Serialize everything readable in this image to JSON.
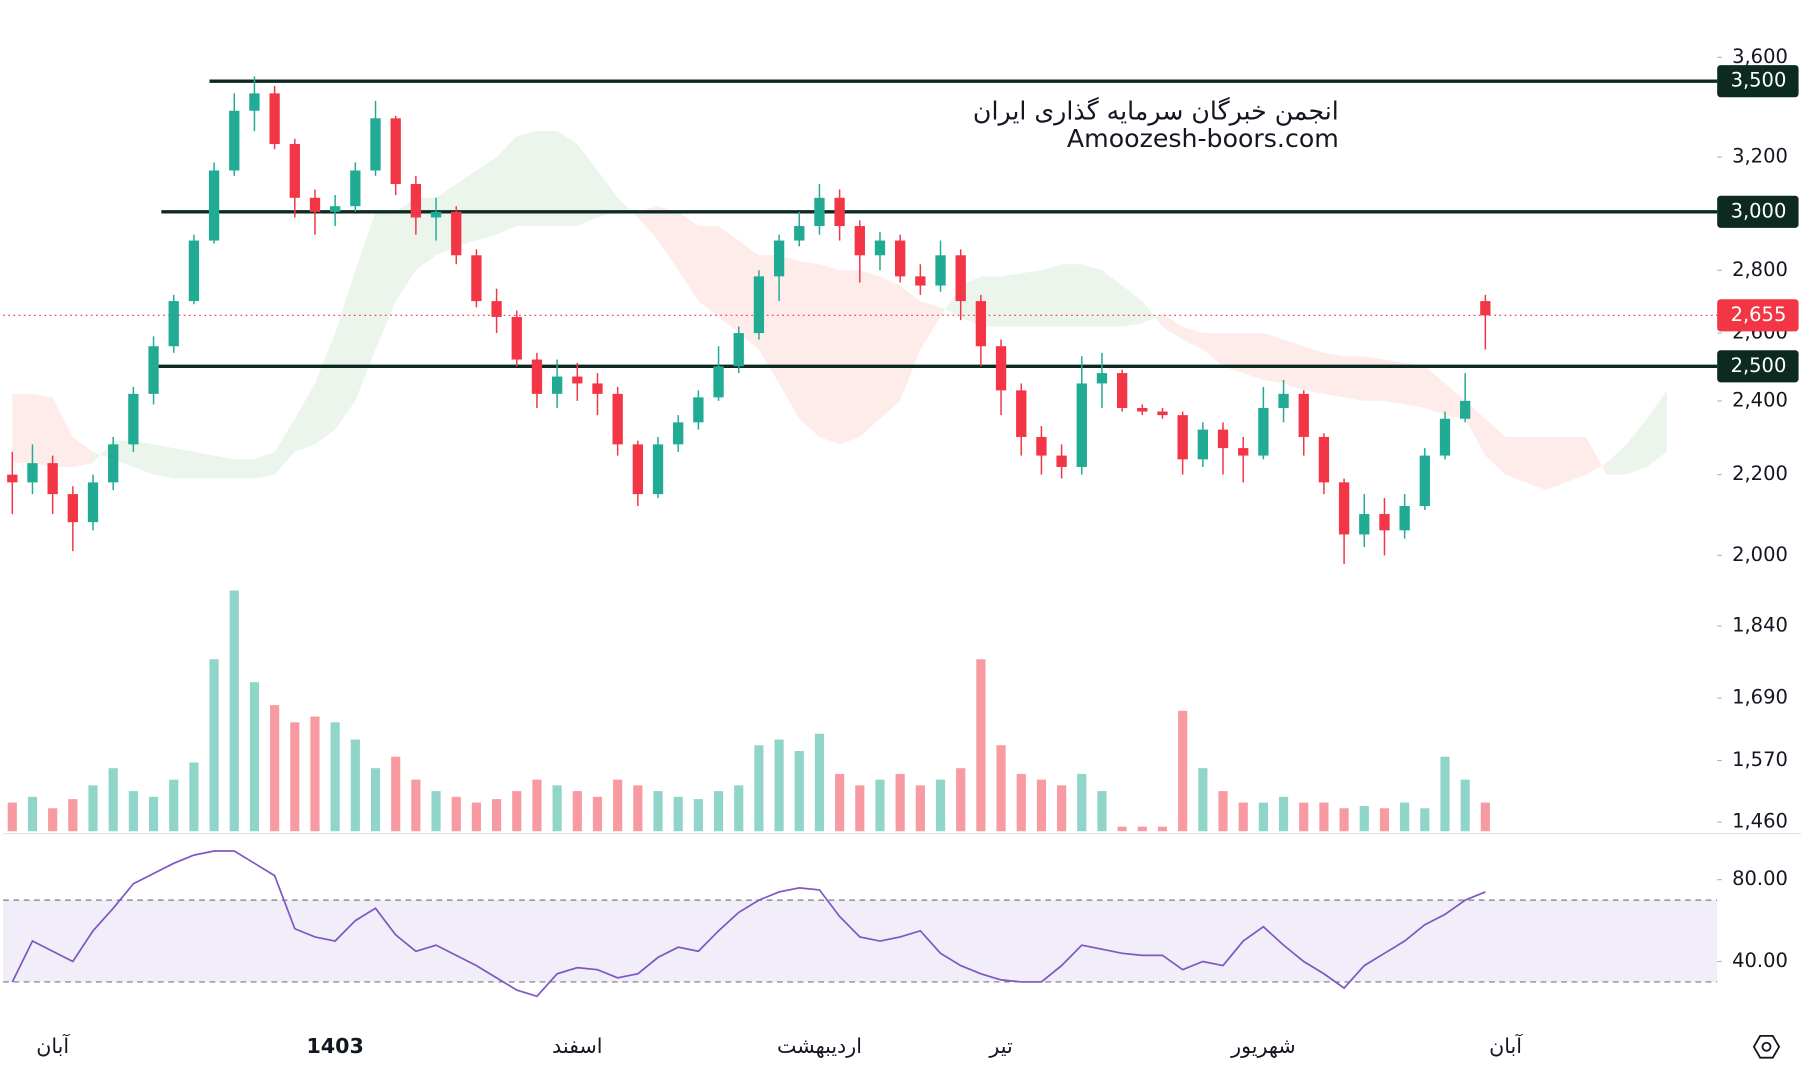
{
  "chart_data": {
    "type": "candlestick",
    "watermark": [
      "انجمن خبرگان سرمایه گذاری ایران",
      "Amoozesh-boors.com"
    ],
    "categories": [
      null,
      null,
      "آبان",
      null,
      null,
      null,
      null,
      null,
      null,
      null,
      null,
      null,
      null,
      null,
      null,
      null,
      "1403",
      null,
      null,
      null,
      null,
      null,
      null,
      null,
      null,
      null,
      null,
      null,
      "اسفند",
      null,
      null,
      null,
      null,
      null,
      null,
      null,
      null,
      null,
      null,
      null,
      "اردیبهشت",
      null,
      null,
      null,
      null,
      null,
      null,
      null,
      null,
      "تیر",
      null,
      null,
      null,
      null,
      null,
      null,
      null,
      null,
      null,
      null,
      null,
      null,
      "شهریور",
      null,
      null,
      null,
      null,
      null,
      null,
      null,
      null,
      null,
      null,
      null,
      "آبان",
      null,
      null,
      null,
      null,
      null,
      null,
      null,
      null
    ],
    "open": [
      2200,
      2180,
      2230,
      2150,
      2080,
      2180,
      2280,
      2420,
      2560,
      2700,
      2900,
      3150,
      3380,
      3450,
      3250,
      3050,
      3000,
      3020,
      3150,
      3350,
      3100,
      2980,
      3000,
      2850,
      2700,
      2650,
      2520,
      2420,
      2470,
      2450,
      2420,
      2280,
      2150,
      2280,
      2340,
      2410,
      2500,
      2600,
      2780,
      2900,
      2950,
      3050,
      2950,
      2850,
      2900,
      2780,
      2750,
      2850,
      2700,
      2560,
      2430,
      2300,
      2250,
      2220,
      2450,
      2480,
      2380,
      2370,
      2360,
      2240,
      2320,
      2270,
      2250,
      2380,
      2420,
      2300,
      2180,
      2050,
      2100,
      2060,
      2120,
      2250,
      2350,
      2700,
      null,
      null,
      null,
      null,
      null,
      null,
      null,
      null,
      null
    ],
    "high": [
      2260,
      2280,
      2250,
      2170,
      2200,
      2300,
      2440,
      2590,
      2720,
      2920,
      3180,
      3450,
      3520,
      3480,
      3270,
      3080,
      3060,
      3180,
      3420,
      3360,
      3130,
      3050,
      3020,
      2870,
      2740,
      2670,
      2540,
      2520,
      2510,
      2480,
      2440,
      2290,
      2300,
      2360,
      2430,
      2560,
      2620,
      2800,
      2920,
      3000,
      3100,
      3080,
      2970,
      2930,
      2920,
      2820,
      2900,
      2870,
      2720,
      2580,
      2450,
      2330,
      2280,
      2530,
      2540,
      2490,
      2390,
      2380,
      2370,
      2340,
      2340,
      2300,
      2440,
      2460,
      2430,
      2310,
      2190,
      2150,
      2140,
      2150,
      2270,
      2370,
      2480,
      2720,
      null,
      null,
      null,
      null,
      null,
      null,
      null,
      null,
      null
    ],
    "low": [
      2100,
      2150,
      2100,
      2010,
      2060,
      2160,
      2260,
      2390,
      2540,
      2690,
      2890,
      3130,
      3300,
      3230,
      2980,
      2920,
      2950,
      3000,
      3130,
      3060,
      2920,
      2900,
      2820,
      2680,
      2600,
      2500,
      2380,
      2380,
      2400,
      2360,
      2250,
      2120,
      2140,
      2260,
      2320,
      2400,
      2480,
      2580,
      2700,
      2880,
      2920,
      2900,
      2760,
      2800,
      2760,
      2720,
      2730,
      2640,
      2500,
      2360,
      2250,
      2200,
      2190,
      2200,
      2380,
      2370,
      2360,
      2350,
      2200,
      2220,
      2200,
      2180,
      2240,
      2340,
      2250,
      2150,
      1980,
      2020,
      2000,
      2040,
      2110,
      2240,
      2340,
      2550,
      null,
      null,
      null,
      null,
      null,
      null,
      null,
      null,
      null
    ],
    "close": [
      2180,
      2230,
      2150,
      2080,
      2180,
      2280,
      2420,
      2560,
      2700,
      2900,
      3150,
      3380,
      3450,
      3250,
      3050,
      3000,
      3020,
      3150,
      3350,
      3100,
      2980,
      3000,
      2850,
      2700,
      2650,
      2520,
      2420,
      2470,
      2450,
      2420,
      2280,
      2150,
      2280,
      2340,
      2410,
      2500,
      2600,
      2780,
      2900,
      2950,
      3050,
      2950,
      2850,
      2900,
      2780,
      2750,
      2850,
      2700,
      2560,
      2430,
      2300,
      2250,
      2220,
      2450,
      2480,
      2380,
      2370,
      2360,
      2240,
      2320,
      2270,
      2250,
      2380,
      2420,
      2300,
      2180,
      2050,
      2100,
      2060,
      2120,
      2250,
      2350,
      2400,
      2655,
      null,
      null,
      null,
      null,
      null,
      null,
      null,
      null,
      null
    ],
    "volume": [
      25,
      30,
      20,
      28,
      40,
      55,
      35,
      30,
      45,
      60,
      150,
      210,
      130,
      110,
      95,
      100,
      95,
      80,
      55,
      65,
      45,
      35,
      30,
      25,
      28,
      35,
      45,
      40,
      35,
      30,
      45,
      40,
      35,
      30,
      28,
      35,
      40,
      75,
      80,
      70,
      85,
      50,
      40,
      45,
      50,
      40,
      45,
      55,
      150,
      75,
      50,
      45,
      40,
      50,
      35,
      4,
      4,
      4,
      105,
      55,
      35,
      25,
      25,
      30,
      25,
      25,
      20,
      22,
      20,
      25,
      20,
      65,
      45,
      25,
      null,
      null,
      null,
      null,
      null,
      null,
      null,
      null,
      null
    ],
    "cloud": {
      "span_a": [
        2230,
        2230,
        2220,
        2220,
        2230,
        2290,
        2290,
        2280,
        2270,
        2260,
        2250,
        2240,
        2240,
        2260,
        2350,
        2450,
        2600,
        2800,
        3000,
        3000,
        3050,
        3050,
        3100,
        3150,
        3200,
        3280,
        3300,
        3300,
        3250,
        3150,
        3050,
        2980,
        2900,
        2800,
        2700,
        2650,
        2600,
        2550,
        2450,
        2350,
        2300,
        2280,
        2300,
        2350,
        2400,
        2550,
        2650,
        2750,
        2780,
        2780,
        2790,
        2800,
        2820,
        2820,
        2800,
        2750,
        2700,
        2620,
        2580,
        2550,
        2500,
        2480,
        2460,
        2450,
        2430,
        2420,
        2410,
        2400,
        2400,
        2390,
        2380,
        2360,
        2350,
        2250,
        2200,
        2180,
        2160,
        2180,
        2200,
        2230,
        2280,
        2350,
        2430
      ],
      "span_b": [
        2420,
        2420,
        2410,
        2300,
        2260,
        2240,
        2220,
        2200,
        2190,
        2190,
        2190,
        2190,
        2190,
        2200,
        2260,
        2280,
        2320,
        2400,
        2550,
        2700,
        2800,
        2850,
        2880,
        2900,
        2920,
        2950,
        2950,
        2950,
        2950,
        2980,
        3000,
        3000,
        3020,
        3000,
        2950,
        2950,
        2900,
        2850,
        2850,
        2830,
        2820,
        2800,
        2800,
        2780,
        2750,
        2700,
        2680,
        2650,
        2620,
        2620,
        2620,
        2620,
        2620,
        2620,
        2620,
        2620,
        2630,
        2660,
        2620,
        2600,
        2600,
        2600,
        2600,
        2580,
        2560,
        2540,
        2530,
        2530,
        2520,
        2510,
        2500,
        2450,
        2400,
        2350,
        2300,
        2300,
        2300,
        2300,
        2300,
        2200,
        2200,
        2220,
        2260
      ]
    },
    "rsi": {
      "values": [
        30,
        50,
        45,
        40,
        55,
        66,
        78,
        83,
        88,
        92,
        94,
        94,
        88,
        82,
        56,
        52,
        50,
        60,
        66,
        53,
        45,
        48,
        43,
        38,
        32,
        26,
        23,
        34,
        37,
        36,
        32,
        34,
        42,
        47,
        45,
        55,
        64,
        70,
        74,
        76,
        75,
        62,
        52,
        50,
        52,
        55,
        44,
        38,
        34,
        31,
        30,
        30,
        38,
        48,
        46,
        44,
        43,
        43,
        36,
        40,
        38,
        50,
        57,
        48,
        40,
        34,
        27,
        38,
        44,
        50,
        58,
        63,
        70,
        74,
        null,
        null,
        null,
        null,
        null,
        null,
        null,
        null,
        null
      ],
      "ylim": [
        14,
        102
      ],
      "yticks": [
        {
          "value": 80,
          "label": "80.00"
        },
        {
          "value": 40,
          "label": "40.00"
        }
      ],
      "band": [
        30,
        70
      ],
      "color": "#7e57c2"
    },
    "ylim": [
      1460,
      3600
    ],
    "log_scale": true,
    "yticks": [
      {
        "value": 3600,
        "label": "3,600"
      },
      {
        "value": 3200,
        "label": "3,200"
      },
      {
        "value": 2800,
        "label": "2,800"
      },
      {
        "value": 2600,
        "label": "2,600"
      },
      {
        "value": 2400,
        "label": "2,400"
      },
      {
        "value": 2200,
        "label": "2,200"
      },
      {
        "value": 2000,
        "label": "2,000"
      },
      {
        "value": 1840,
        "label": "1,840"
      },
      {
        "value": 1690,
        "label": "1,690"
      },
      {
        "value": 1570,
        "label": "1,570"
      },
      {
        "value": 1460,
        "label": "1,460"
      }
    ],
    "levels": [
      {
        "value": 3500,
        "label": "3,500"
      },
      {
        "value": 3000,
        "label": "3,000"
      },
      {
        "value": 2500,
        "label": "2,500"
      }
    ],
    "last_price": {
      "value": 2655,
      "label": "2,655"
    },
    "up_color": "#22ab94",
    "down_color": "#f23645",
    "level_color": "#0c2a22"
  }
}
